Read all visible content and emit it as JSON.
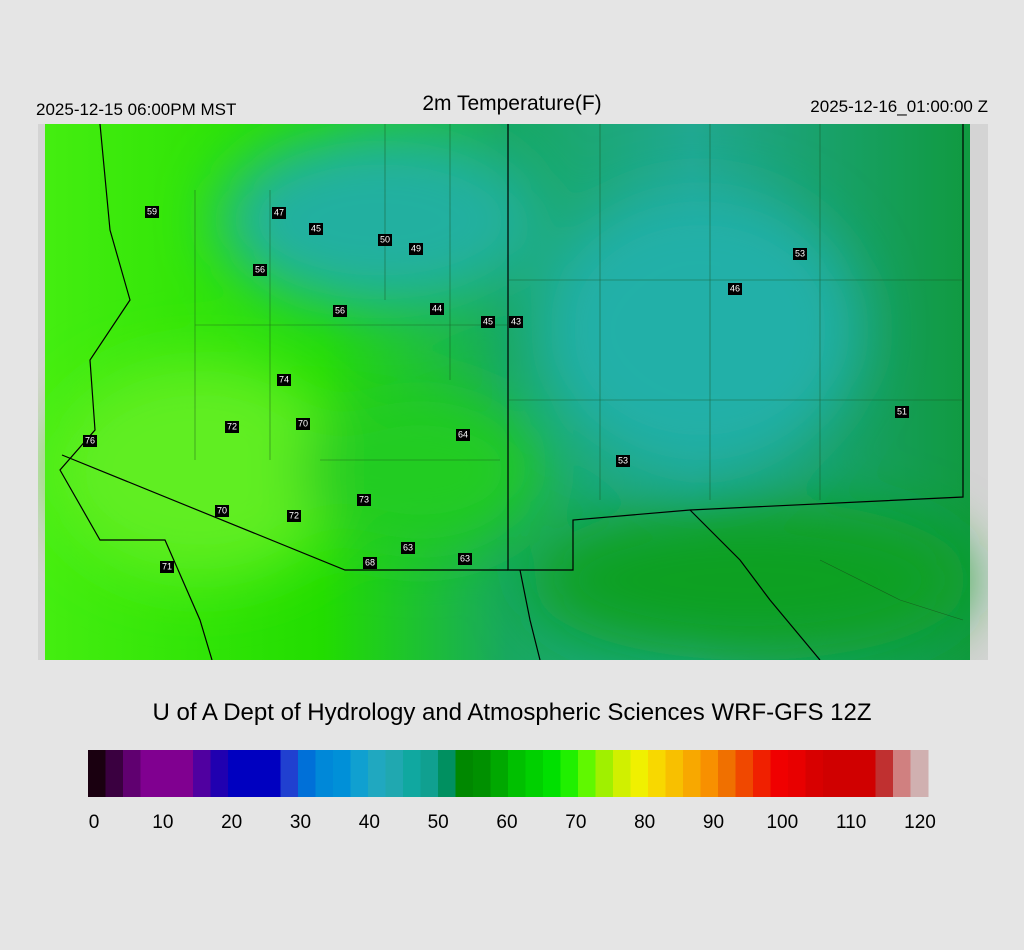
{
  "header": {
    "left": "2025-12-15 06:00PM MST",
    "title": "2m Temperature(F)",
    "right": "2025-12-16_01:00:00 Z"
  },
  "stations": [
    59,
    47,
    45,
    50,
    49,
    56,
    56,
    44,
    45,
    43,
    53,
    46,
    74,
    72,
    70,
    64,
    76,
    51,
    53,
    73,
    70,
    72,
    63,
    68,
    63,
    71
  ],
  "footer": "U of A Dept of Hydrology and Atmospheric Sciences WRF-GFS 12Z",
  "colorbar": {
    "ticks": [
      0,
      10,
      20,
      30,
      40,
      50,
      60,
      70,
      80,
      90,
      100,
      110,
      120
    ],
    "colors": [
      "#1a0010",
      "#3a0040",
      "#600070",
      "#800090",
      "#800090",
      "#800090",
      "#5000a0",
      "#2000b0",
      "#0000c0",
      "#0000c0",
      "#0000c0",
      "#2040d0",
      "#0070d8",
      "#0088d8",
      "#0090d8",
      "#10a0d0",
      "#20a8c0",
      "#20a8b0",
      "#10a8a0",
      "#10a090",
      "#009060",
      "#008800",
      "#009000",
      "#00a800",
      "#00c000",
      "#00d000",
      "#00e000",
      "#20f000",
      "#60f800",
      "#a0f000",
      "#d0f000",
      "#f0f000",
      "#f8d800",
      "#f8c000",
      "#f8a800",
      "#f89000",
      "#f07000",
      "#f04800",
      "#f02000",
      "#f00000",
      "#e80000",
      "#d80000",
      "#d00000",
      "#d00000",
      "#d00000",
      "#c03030",
      "#d08080",
      "#d0b0b0"
    ]
  }
}
